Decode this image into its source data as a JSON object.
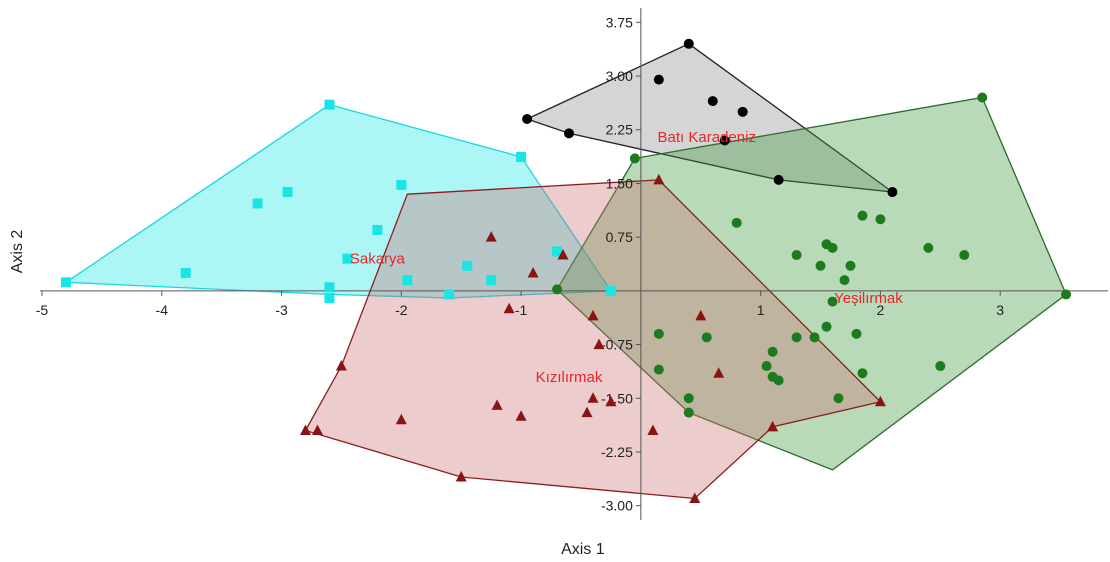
{
  "chart_data": {
    "type": "scatter",
    "xlabel": "Axis 1",
    "ylabel": "Axis 2",
    "xlim": [
      -5,
      3.9
    ],
    "ylim": [
      -3.2,
      3.95
    ],
    "x_ticks": [
      {
        "value": -5,
        "label": "-5"
      },
      {
        "value": -4,
        "label": "-4"
      },
      {
        "value": -3,
        "label": "-3"
      },
      {
        "value": -2,
        "label": "-2"
      },
      {
        "value": -1,
        "label": "-1"
      },
      {
        "value": 1,
        "label": "1"
      },
      {
        "value": 2,
        "label": "2"
      },
      {
        "value": 3,
        "label": "3"
      }
    ],
    "y_ticks": [
      {
        "value": 3.75,
        "label": "3.75"
      },
      {
        "value": 3.0,
        "label": "3.00"
      },
      {
        "value": 2.25,
        "label": "2.25"
      },
      {
        "value": 1.5,
        "label": "1.50"
      },
      {
        "value": 0.75,
        "label": "0.75"
      },
      {
        "value": -0.75,
        "label": "-0.75"
      },
      {
        "value": -1.5,
        "label": "-1.50"
      },
      {
        "value": -2.25,
        "label": "-2.25"
      },
      {
        "value": -3.0,
        "label": "-3.00"
      }
    ],
    "grid": false,
    "series": [
      {
        "name": "Sakarya",
        "marker": "square",
        "color": "#19E5E5",
        "fill": "#19E5E5",
        "stroke": "#19D7E2",
        "label_at": [
          -2.2,
          0.45
        ],
        "hull": [
          [
            -4.8,
            0.12
          ],
          [
            -2.6,
            2.6
          ],
          [
            -1.0,
            1.87
          ],
          [
            -0.25,
            0.0
          ],
          [
            -1.6,
            -0.1
          ],
          [
            -2.6,
            -0.05
          ]
        ],
        "points": [
          [
            -4.8,
            0.12
          ],
          [
            -3.8,
            0.25
          ],
          [
            -3.2,
            1.22
          ],
          [
            -2.95,
            1.38
          ],
          [
            -2.6,
            2.6
          ],
          [
            -2.6,
            0.05
          ],
          [
            -2.6,
            -0.1
          ],
          [
            -2.45,
            0.45
          ],
          [
            -2.2,
            0.85
          ],
          [
            -2.0,
            1.48
          ],
          [
            -1.95,
            0.15
          ],
          [
            -1.6,
            -0.05
          ],
          [
            -1.45,
            0.35
          ],
          [
            -1.25,
            0.15
          ],
          [
            -1.0,
            1.87
          ],
          [
            -0.7,
            0.55
          ],
          [
            -0.25,
            0.0
          ]
        ]
      },
      {
        "name": "Batı Karadeniz",
        "marker": "circle",
        "color": "#000000",
        "fill": "#8A8A8A",
        "stroke": "#222222",
        "label_at": [
          0.55,
          2.15
        ],
        "hull": [
          [
            -0.95,
            2.4
          ],
          [
            0.4,
            3.45
          ],
          [
            2.1,
            1.38
          ],
          [
            1.15,
            1.55
          ],
          [
            -0.6,
            2.2
          ]
        ],
        "points": [
          [
            -0.95,
            2.4
          ],
          [
            -0.6,
            2.2
          ],
          [
            0.15,
            2.95
          ],
          [
            0.4,
            3.45
          ],
          [
            0.6,
            2.65
          ],
          [
            0.7,
            2.1
          ],
          [
            0.85,
            2.5
          ],
          [
            1.15,
            1.55
          ],
          [
            2.1,
            1.38
          ]
        ]
      },
      {
        "name": "Yeşilırmak",
        "marker": "circle",
        "color": "#1E7A1E",
        "fill": "#3D993D",
        "stroke": "#2D6A2D",
        "label_at": [
          1.9,
          -0.1
        ],
        "hull": [
          [
            -0.7,
            0.02
          ],
          [
            -0.05,
            1.85
          ],
          [
            2.85,
            2.7
          ],
          [
            3.55,
            -0.05
          ],
          [
            1.6,
            -2.5
          ],
          [
            0.4,
            -1.7
          ]
        ],
        "points": [
          [
            -0.7,
            0.02
          ],
          [
            -0.05,
            1.85
          ],
          [
            0.15,
            -0.6
          ],
          [
            0.15,
            -1.1
          ],
          [
            0.4,
            -1.5
          ],
          [
            0.4,
            -1.7
          ],
          [
            0.55,
            -0.65
          ],
          [
            0.8,
            0.95
          ],
          [
            1.05,
            -1.05
          ],
          [
            1.1,
            -0.85
          ],
          [
            1.1,
            -1.2
          ],
          [
            1.15,
            -1.25
          ],
          [
            1.3,
            0.5
          ],
          [
            1.3,
            -0.65
          ],
          [
            1.45,
            -0.65
          ],
          [
            1.5,
            0.35
          ],
          [
            1.55,
            0.65
          ],
          [
            1.55,
            -0.5
          ],
          [
            1.6,
            0.6
          ],
          [
            1.6,
            -0.15
          ],
          [
            1.65,
            -1.5
          ],
          [
            1.7,
            0.15
          ],
          [
            1.75,
            0.35
          ],
          [
            1.8,
            -0.6
          ],
          [
            1.85,
            1.05
          ],
          [
            1.85,
            -1.15
          ],
          [
            2.0,
            1.0
          ],
          [
            2.4,
            0.6
          ],
          [
            2.5,
            -1.05
          ],
          [
            2.7,
            0.5
          ],
          [
            2.85,
            2.7
          ],
          [
            3.55,
            -0.05
          ]
        ]
      },
      {
        "name": "Kızılırmak",
        "marker": "triangle",
        "color": "#8A1414",
        "fill": "#C97373",
        "stroke": "#8B1E1E",
        "label_at": [
          -0.6,
          -1.2
        ],
        "hull": [
          [
            -1.95,
            1.35
          ],
          [
            0.15,
            1.55
          ],
          [
            2.0,
            -1.55
          ],
          [
            1.1,
            -1.9
          ],
          [
            0.45,
            -2.9
          ],
          [
            -1.5,
            -2.6
          ],
          [
            -2.8,
            -1.95
          ],
          [
            -2.5,
            -1.05
          ]
        ],
        "points": [
          [
            -2.8,
            -1.95
          ],
          [
            -2.7,
            -1.95
          ],
          [
            -2.5,
            -1.05
          ],
          [
            -2.0,
            -1.8
          ],
          [
            -1.5,
            -2.6
          ],
          [
            -1.25,
            0.75
          ],
          [
            -1.2,
            -1.6
          ],
          [
            -1.1,
            -0.25
          ],
          [
            -1.0,
            -1.75
          ],
          [
            -0.9,
            0.25
          ],
          [
            -0.65,
            0.5
          ],
          [
            -0.45,
            -1.7
          ],
          [
            -0.4,
            -0.35
          ],
          [
            -0.4,
            -1.5
          ],
          [
            -0.35,
            -0.75
          ],
          [
            -0.25,
            -1.55
          ],
          [
            0.15,
            1.55
          ],
          [
            0.1,
            -1.95
          ],
          [
            0.45,
            -2.9
          ],
          [
            0.5,
            -0.35
          ],
          [
            0.65,
            -1.15
          ],
          [
            1.1,
            -1.9
          ],
          [
            2.0,
            -1.55
          ]
        ]
      }
    ]
  }
}
